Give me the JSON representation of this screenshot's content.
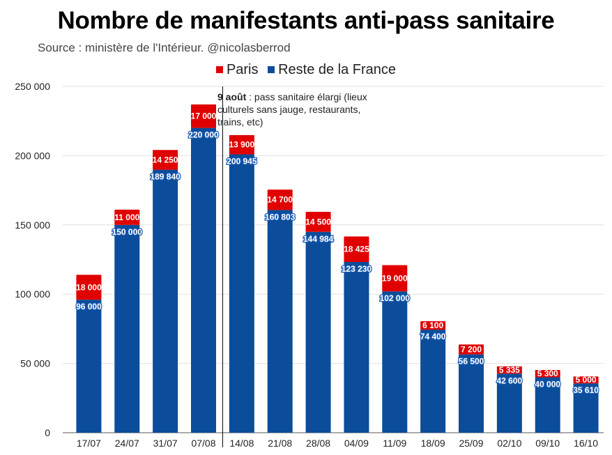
{
  "header": {
    "title": "Nombre de manifestants anti-pass sanitaire",
    "subtitle": "Source : ministère de l'Intérieur. @nicolasberrod"
  },
  "legend": [
    {
      "label": "Paris",
      "color": "#e00000"
    },
    {
      "label": "Reste de la France",
      "color": "#0b4d9a"
    }
  ],
  "annotation": {
    "bold": "9 août",
    "text": " : pass sanitaire élargi (lieux culturels sans jauge, restaurants, trains, etc)"
  },
  "chart_data": {
    "type": "bar",
    "stacked": true,
    "title": "Nombre de manifestants anti-pass sanitaire",
    "subtitle": "Source : ministère de l'Intérieur. @nicolasberrod",
    "xlabel": "",
    "ylabel": "",
    "ylim": [
      0,
      250000
    ],
    "yticks": [
      0,
      50000,
      100000,
      150000,
      200000,
      250000
    ],
    "ytick_labels": [
      "0",
      "50 000",
      "100 000",
      "150 000",
      "200 000",
      "250 000"
    ],
    "grid": true,
    "legend_position": "top-center",
    "categories": [
      "17/07",
      "24/07",
      "31/07",
      "07/08",
      "14/08",
      "21/08",
      "28/08",
      "04/09",
      "11/09",
      "18/09",
      "25/09",
      "02/10",
      "09/10",
      "16/10"
    ],
    "series": [
      {
        "name": "Reste de la France",
        "color": "#0b4d9a",
        "values": [
          96000,
          150000,
          189840,
          220000,
          200945,
          160803,
          144984,
          123230,
          102000,
          74400,
          56500,
          42600,
          40000,
          35610
        ],
        "labels": [
          "96 000",
          "150 000",
          "189 840",
          "220 000",
          "200 945",
          "160 803",
          "144 984",
          "123 230",
          "102 000",
          "74 400",
          "56 500",
          "42 600",
          "40 000",
          "35 610"
        ]
      },
      {
        "name": "Paris",
        "color": "#e00000",
        "values": [
          18000,
          11000,
          14250,
          17000,
          13900,
          14700,
          14500,
          18425,
          19000,
          6100,
          7200,
          5335,
          5300,
          5000
        ],
        "labels": [
          "18 000",
          "11 000",
          "14 250",
          "17 000",
          "13 900",
          "14 700",
          "14 500",
          "18 425",
          "19 000",
          "6 100",
          "7 200",
          "5 335",
          "5 300",
          "5 000"
        ]
      }
    ],
    "annotations": [
      {
        "type": "vertical-line",
        "between": [
          "07/08",
          "14/08"
        ],
        "text": "9 août : pass sanitaire élargi (lieux culturels sans jauge, restaurants, trains, etc)"
      }
    ]
  }
}
